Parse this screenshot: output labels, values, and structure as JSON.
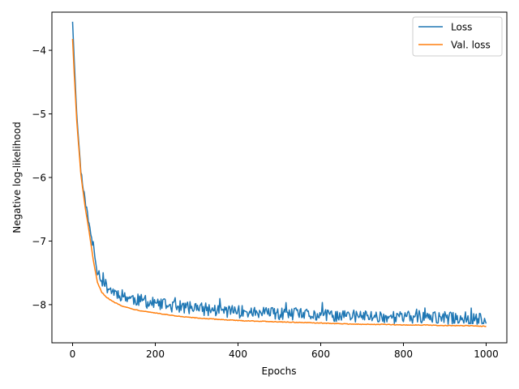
{
  "chart_data": {
    "type": "line",
    "xlabel": "Epochs",
    "ylabel": "Negative log-likelihood",
    "xlim": [
      -50,
      1050
    ],
    "ylim": [
      -8.6,
      -3.4
    ],
    "xticks": [
      0,
      200,
      400,
      600,
      800,
      1000
    ],
    "xtick_labels": [
      "0",
      "200",
      "400",
      "600",
      "800",
      "1000"
    ],
    "yticks": [
      -4,
      -5,
      -6,
      -7,
      -8
    ],
    "ytick_labels": [
      "−4",
      "−5",
      "−6",
      "−7",
      "−8"
    ],
    "grid": false,
    "legend_position": "top-right",
    "series": [
      {
        "name": "Loss",
        "color": "#1f77b4",
        "x": [
          0,
          5,
          10,
          20,
          30,
          40,
          50,
          60,
          70,
          80,
          90,
          100,
          120,
          140,
          160,
          180,
          200,
          250,
          300,
          350,
          400,
          450,
          500,
          550,
          600,
          650,
          700,
          750,
          800,
          850,
          900,
          950,
          980,
          1000
        ],
        "y": [
          -3.55,
          -4.3,
          -5.0,
          -5.9,
          -6.35,
          -6.75,
          -7.1,
          -7.45,
          -7.6,
          -7.7,
          -7.75,
          -7.8,
          -7.85,
          -7.9,
          -7.93,
          -7.96,
          -7.99,
          -8.03,
          -8.06,
          -8.09,
          -8.11,
          -8.13,
          -8.15,
          -8.16,
          -8.17,
          -8.18,
          -8.18,
          -8.19,
          -8.2,
          -8.2,
          -8.21,
          -8.21,
          -8.22,
          -8.27
        ],
        "noise": 0.1
      },
      {
        "name": "Val. loss",
        "color": "#ff7f0e",
        "x": [
          0,
          5,
          10,
          20,
          30,
          40,
          50,
          60,
          70,
          80,
          90,
          100,
          120,
          140,
          160,
          180,
          200,
          250,
          300,
          350,
          400,
          450,
          500,
          550,
          600,
          650,
          700,
          750,
          800,
          850,
          900,
          950,
          1000
        ],
        "y": [
          -3.82,
          -4.5,
          -5.1,
          -5.95,
          -6.45,
          -6.85,
          -7.3,
          -7.65,
          -7.8,
          -7.87,
          -7.92,
          -7.96,
          -8.02,
          -8.06,
          -8.09,
          -8.11,
          -8.13,
          -8.18,
          -8.21,
          -8.23,
          -8.25,
          -8.26,
          -8.27,
          -8.28,
          -8.29,
          -8.3,
          -8.31,
          -8.31,
          -8.32,
          -8.32,
          -8.33,
          -8.33,
          -8.34
        ],
        "noise": 0.005
      }
    ]
  }
}
